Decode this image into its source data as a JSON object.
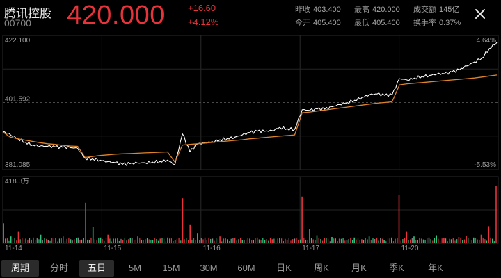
{
  "header": {
    "name": "腾讯控股",
    "code": "00700",
    "price": "420.000",
    "change": "+16.60",
    "change_pct": "+4.12%",
    "price_color": "#e8333b",
    "stats": [
      {
        "label": "昨收",
        "value": "403.400"
      },
      {
        "label": "最高",
        "value": "420.000"
      },
      {
        "label": "成交额",
        "value": "145亿"
      },
      {
        "label": "今开",
        "value": "405.400"
      },
      {
        "label": "最低",
        "value": "405.400"
      },
      {
        "label": "换手率",
        "value": "0.37%"
      }
    ],
    "close_icon": "close-icon"
  },
  "chart_data": {
    "type": "line",
    "price_axis": {
      "top": "422.100",
      "mid": "401.592",
      "bottom": "381.085",
      "ylim": [
        381.085,
        422.1
      ]
    },
    "pct_axis": {
      "top": "4.64%",
      "bottom": "-5.53%"
    },
    "volume_axis": {
      "top": "418.3万"
    },
    "x_labels": [
      "11-14",
      "11-15",
      "11-16",
      "11-17",
      "11-20"
    ],
    "series": [
      {
        "color": "#ffffff",
        "values": [
          392.8,
          391.8,
          390.6,
          389.5,
          388.6,
          388.3,
          388.2,
          388.0,
          387.9,
          387.8,
          387.6,
          384.6,
          384.4,
          384.0,
          383.5,
          383.2,
          382.7,
          382.9,
          383.1,
          383.2,
          383.4,
          383.6,
          384.0,
          382.6,
          392.0,
          386.5,
          388.9,
          389.3,
          389.6,
          390.2,
          390.6,
          391.0,
          391.7,
          392.4,
          392.8,
          392.8,
          393.0,
          394.0,
          393.6,
          393.4,
          399.4,
          399.2,
          399.6,
          399.6,
          400.3,
          401.0,
          401.6,
          402.3,
          403.2,
          404.0,
          404.2,
          403.8,
          403.9,
          408.9,
          408.5,
          409.1,
          409.6,
          409.9,
          410.3,
          410.4,
          410.9,
          411.6,
          412.8,
          414.0,
          415.2,
          418.1,
          420.0
        ]
      },
      {
        "color": "#e0842c",
        "values": [
          392.6,
          391.0,
          390.5,
          390.1,
          389.7,
          389.3,
          389.0,
          388.8,
          388.5,
          388.3,
          388.2,
          384.8,
          385.1,
          385.4,
          385.6,
          385.8,
          385.9,
          386.0,
          386.1,
          386.2,
          386.3,
          386.4,
          386.5,
          383.4,
          388.6,
          388.8,
          389.0,
          389.2,
          389.4,
          389.6,
          389.8,
          390.0,
          390.2,
          390.5,
          390.7,
          390.9,
          391.1,
          391.3,
          391.5,
          391.7,
          398.5,
          398.7,
          399.0,
          399.3,
          399.6,
          399.9,
          400.2,
          400.5,
          400.8,
          401.1,
          401.4,
          401.6,
          401.8,
          407.0,
          407.3,
          407.5,
          407.7,
          407.9,
          408.1,
          408.3,
          408.5,
          408.7,
          408.9,
          409.1,
          409.4,
          409.7,
          410.0
        ]
      }
    ],
    "volume": {
      "colors": {
        "up": "#e8333b",
        "down": "#2ec27e",
        "flat": "#8a8a8a"
      },
      "values": [
        0.35,
        0.12,
        0.2,
        0.08,
        0.1,
        0.15,
        0.06,
        0.09,
        0.12,
        0.07,
        0.1,
        0.71,
        0.28,
        0.1,
        0.15,
        0.08,
        0.06,
        0.09,
        0.12,
        0.07,
        0.05,
        0.08,
        0.1,
        0.05,
        0.79,
        0.32,
        0.18,
        0.1,
        0.08,
        0.12,
        0.07,
        0.09,
        0.06,
        0.08,
        0.1,
        0.05,
        0.07,
        0.09,
        0.06,
        0.08,
        0.82,
        0.25,
        0.14,
        0.09,
        0.11,
        0.08,
        0.06,
        0.1,
        0.07,
        0.12,
        0.09,
        0.06,
        0.1,
        0.85,
        0.2,
        0.12,
        0.08,
        0.1,
        0.14,
        0.09,
        0.07,
        0.11,
        0.13,
        0.1,
        0.15,
        0.3,
        1.0
      ],
      "directions": [
        "down",
        "down",
        "up",
        "down",
        "up",
        "down",
        "flat",
        "down",
        "up",
        "down",
        "flat",
        "up",
        "down",
        "down",
        "up",
        "down",
        "up",
        "down",
        "flat",
        "up",
        "down",
        "up",
        "down",
        "down",
        "up",
        "up",
        "down",
        "up",
        "flat",
        "up",
        "down",
        "up",
        "down",
        "flat",
        "up",
        "down",
        "up",
        "down",
        "up",
        "flat",
        "up",
        "up",
        "down",
        "up",
        "down",
        "up",
        "flat",
        "down",
        "up",
        "down",
        "up",
        "down",
        "flat",
        "up",
        "up",
        "down",
        "up",
        "flat",
        "down",
        "up",
        "down",
        "up",
        "up",
        "down",
        "up",
        "up",
        "up"
      ]
    }
  },
  "tabs": [
    {
      "label": "周期",
      "active": true
    },
    {
      "label": "分时",
      "active": false
    },
    {
      "label": "五日",
      "active": true
    },
    {
      "label": "5M",
      "active": false
    },
    {
      "label": "15M",
      "active": false
    },
    {
      "label": "30M",
      "active": false
    },
    {
      "label": "60M",
      "active": false
    },
    {
      "label": "日K",
      "active": false
    },
    {
      "label": "周K",
      "active": false
    },
    {
      "label": "月K",
      "active": false
    },
    {
      "label": "季K",
      "active": false
    },
    {
      "label": "年K",
      "active": false
    }
  ]
}
